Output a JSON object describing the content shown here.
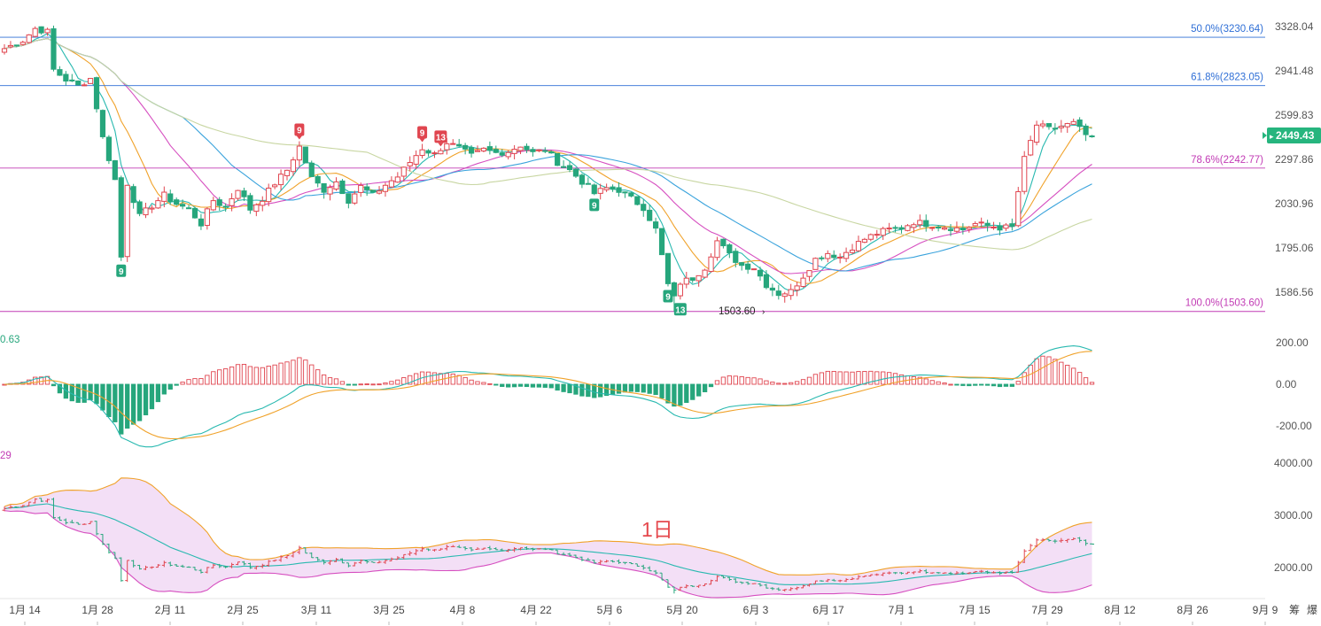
{
  "price_panel": {
    "y_ticks": [
      "3328.04",
      "2941.48",
      "2599.83",
      "2297.86",
      "2030.96",
      "1795.06",
      "1586.56"
    ],
    "current_price": "2449.43",
    "low_marker": "1503.60",
    "fib_levels": [
      {
        "label": "50.0%(3230.64)",
        "value": 3230.64,
        "color": "#2f6fd6"
      },
      {
        "label": "61.8%(2823.05)",
        "value": 2823.05,
        "color": "#2f6fd6"
      },
      {
        "label": "78.6%(2242.77)",
        "value": 2242.77,
        "color": "#c23bb5"
      },
      {
        "label": "100.0%(1503.60)",
        "value": 1503.6,
        "color": "#c23bb5"
      }
    ]
  },
  "macd_panel": {
    "left_value": "0.63",
    "y_ticks": [
      "200.00",
      "0.00",
      "-200.00"
    ]
  },
  "boll_panel": {
    "left_value": "29",
    "y_ticks": [
      "4000.00",
      "3000.00",
      "2000.00"
    ],
    "period_label": "1日"
  },
  "x_ticks": [
    "1月 14",
    "1月 28",
    "2月 11",
    "2月 25",
    "3月 11",
    "3月 25",
    "4月 8",
    "4月 22",
    "5月 6",
    "5月 20",
    "6月 3",
    "6月 17",
    "7月 1",
    "7月 15",
    "7月 29",
    "8月 12",
    "8月 26",
    "9月 9"
  ],
  "right_tools": [
    "筹",
    "爆"
  ],
  "td_markers": [
    {
      "text": "9",
      "kind": "down",
      "index": 19
    },
    {
      "text": "9",
      "kind": "up",
      "index": 48
    },
    {
      "text": "9",
      "kind": "up",
      "index": 68
    },
    {
      "text": "13",
      "kind": "up",
      "index": 71
    },
    {
      "text": "9",
      "kind": "down",
      "index": 96
    },
    {
      "text": "9",
      "kind": "down",
      "index": 108
    },
    {
      "text": "13",
      "kind": "down",
      "index": 110
    }
  ],
  "colors": {
    "up": "#e0454f",
    "down": "#26a67c",
    "ma5": "#29b9b0",
    "ma10": "#f0a22a",
    "ma20": "#d64fc0",
    "ma30": "#3aa3dc",
    "ma60": "#c8d6a2",
    "boll_fill": "#f1d9f5",
    "current_tag": "#26b57e"
  },
  "chart_data": {
    "type": "candlestick",
    "interval": "1日",
    "y_axis": "log",
    "keypoints": [
      [
        0,
        3130
      ],
      [
        3,
        3200
      ],
      [
        5,
        3310
      ],
      [
        7,
        3280
      ],
      [
        8,
        2950
      ],
      [
        10,
        2870
      ],
      [
        12,
        2820
      ],
      [
        14,
        2880
      ],
      [
        16,
        2440
      ],
      [
        18,
        2170
      ],
      [
        19,
        1750
      ],
      [
        20,
        2150
      ],
      [
        22,
        1960
      ],
      [
        24,
        2020
      ],
      [
        26,
        2080
      ],
      [
        28,
        2030
      ],
      [
        30,
        2000
      ],
      [
        32,
        1920
      ],
      [
        34,
        2050
      ],
      [
        36,
        2010
      ],
      [
        38,
        2120
      ],
      [
        40,
        2000
      ],
      [
        42,
        2060
      ],
      [
        44,
        2150
      ],
      [
        46,
        2230
      ],
      [
        48,
        2380
      ],
      [
        50,
        2180
      ],
      [
        52,
        2110
      ],
      [
        54,
        2160
      ],
      [
        56,
        2050
      ],
      [
        58,
        2130
      ],
      [
        60,
        2080
      ],
      [
        62,
        2140
      ],
      [
        64,
        2190
      ],
      [
        66,
        2280
      ],
      [
        68,
        2370
      ],
      [
        70,
        2330
      ],
      [
        72,
        2410
      ],
      [
        74,
        2370
      ],
      [
        76,
        2320
      ],
      [
        78,
        2360
      ],
      [
        80,
        2340
      ],
      [
        82,
        2350
      ],
      [
        84,
        2390
      ],
      [
        86,
        2340
      ],
      [
        88,
        2360
      ],
      [
        90,
        2280
      ],
      [
        92,
        2230
      ],
      [
        94,
        2160
      ],
      [
        96,
        2090
      ],
      [
        98,
        2120
      ],
      [
        100,
        2110
      ],
      [
        102,
        2060
      ],
      [
        104,
        2010
      ],
      [
        106,
        1890
      ],
      [
        108,
        1620
      ],
      [
        109,
        1560
      ],
      [
        110,
        1630
      ],
      [
        112,
        1650
      ],
      [
        114,
        1700
      ],
      [
        116,
        1830
      ],
      [
        118,
        1760
      ],
      [
        120,
        1710
      ],
      [
        122,
        1700
      ],
      [
        124,
        1620
      ],
      [
        126,
        1580
      ],
      [
        128,
        1590
      ],
      [
        130,
        1660
      ],
      [
        132,
        1740
      ],
      [
        134,
        1770
      ],
      [
        136,
        1750
      ],
      [
        138,
        1800
      ],
      [
        140,
        1840
      ],
      [
        142,
        1870
      ],
      [
        144,
        1890
      ],
      [
        146,
        1900
      ],
      [
        148,
        1930
      ],
      [
        150,
        1920
      ],
      [
        152,
        1910
      ],
      [
        154,
        1900
      ],
      [
        156,
        1890
      ],
      [
        158,
        1920
      ],
      [
        160,
        1910
      ],
      [
        162,
        1900
      ],
      [
        164,
        1900
      ],
      [
        166,
        2300
      ],
      [
        168,
        2530
      ],
      [
        170,
        2500
      ],
      [
        172,
        2520
      ],
      [
        174,
        2540
      ],
      [
        176,
        2460
      ],
      [
        177,
        2449
      ]
    ],
    "macd": {
      "dif_range": [
        -300,
        160
      ],
      "dea_range": [
        -280,
        140
      ]
    }
  }
}
